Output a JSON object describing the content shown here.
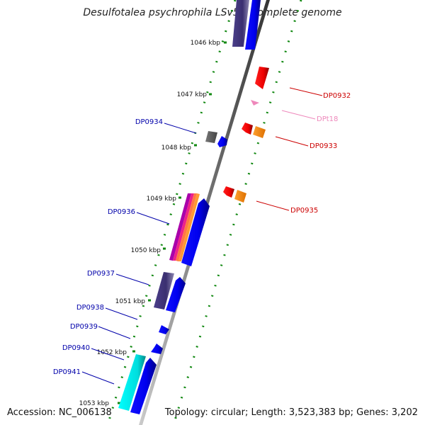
{
  "title": "Desulfotalea psychrophila LSv54, complete genome",
  "footer": {
    "accession": "Accession: NC_006138",
    "summary": "Topology: circular; Length: 3,523,383 bp; Genes: 3,202"
  },
  "ticks": [
    "1046 kbp",
    "1047 kbp",
    "1048 kbp",
    "1049 kbp",
    "1050 kbp",
    "1051 kbp",
    "1052 kbp",
    "1053 kbp"
  ],
  "genes": [
    {
      "label": "DP0932",
      "strand": "+",
      "color": "#cc0000"
    },
    {
      "label": "DPt18",
      "strand": "+",
      "color": "#ee88bb"
    },
    {
      "label": "DP0933",
      "strand": "+",
      "color": "#cc0000"
    },
    {
      "label": "DP0934",
      "strand": "-",
      "color": "#0000aa"
    },
    {
      "label": "DP0935",
      "strand": "+",
      "color": "#cc0000"
    },
    {
      "label": "DP0936",
      "strand": "-",
      "color": "#0000aa"
    },
    {
      "label": "DP0937",
      "strand": "-",
      "color": "#0000aa"
    },
    {
      "label": "DP0938",
      "strand": "-",
      "color": "#0000aa"
    },
    {
      "label": "DP0939",
      "strand": "-",
      "color": "#0000aa"
    },
    {
      "label": "DP0940",
      "strand": "-",
      "color": "#0000aa"
    },
    {
      "label": "DP0941",
      "strand": "-",
      "color": "#0000aa"
    }
  ]
}
